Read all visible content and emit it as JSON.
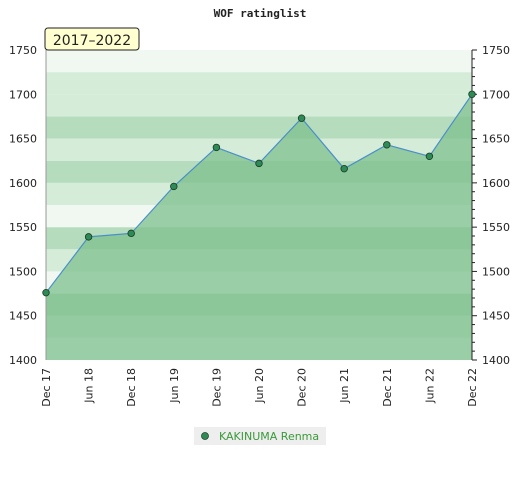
{
  "chart_data": {
    "type": "area",
    "title": "WOF ratinglist",
    "range_label": "2017–2022",
    "categories": [
      "Dec 17",
      "Jun 18",
      "Dec 18",
      "Jun 19",
      "Dec 19",
      "Jun 20",
      "Dec 20",
      "Jun 21",
      "Dec 21",
      "Jun 22",
      "Dec 22"
    ],
    "series": [
      {
        "name": "KAKINUMA Renma",
        "values": [
          1476,
          1539,
          1543,
          1596,
          1640,
          1622,
          1673,
          1616,
          1643,
          1630,
          1700
        ]
      }
    ],
    "ylim": [
      1400,
      1750
    ],
    "yticks": [
      1400,
      1450,
      1500,
      1550,
      1600,
      1650,
      1700,
      1750
    ],
    "y_axis_both_sides": true,
    "grid": true,
    "legend_position": "bottom-center",
    "colors": {
      "fill": "#7dc08d",
      "line": "#4a8fc9",
      "marker": "#2e8b57",
      "band_light": "#f0f8f1",
      "band_mid": "#d5ecd9",
      "band_dark": "#b6dcbe",
      "range_box": "#ffffd0"
    }
  }
}
